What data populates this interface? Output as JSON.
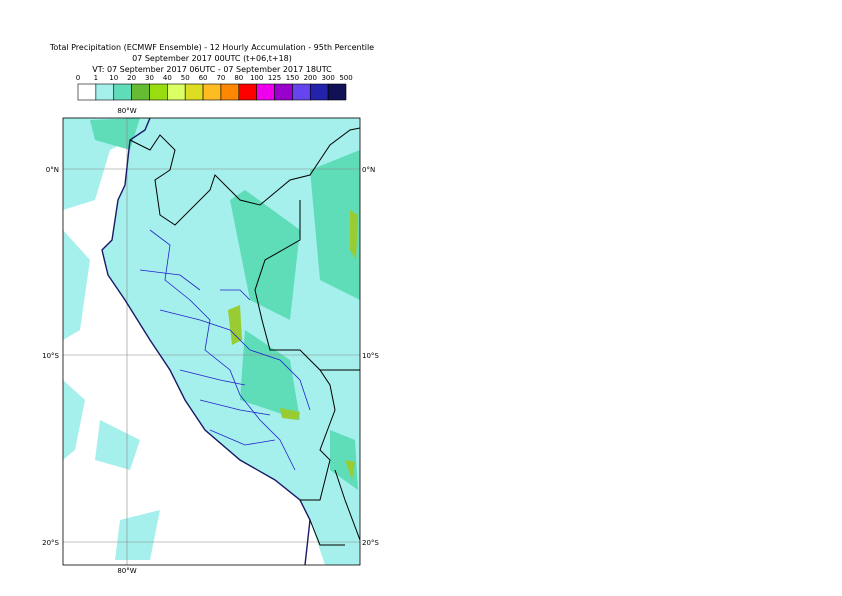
{
  "header": {
    "lines": [
      "Total Precipitation (ECMWF Ensemble) - 12 Hourly Accumulation - 95th Percentile",
      "07 September 2017 00UTC (t+06,t+18)",
      "VT: 07 September 2017 06UTC - 07 September 2017 18UTC"
    ]
  },
  "legend": {
    "thresholds": [
      0,
      1,
      10,
      20,
      30,
      40,
      50,
      60,
      70,
      80,
      100,
      125,
      150,
      200,
      300,
      500
    ],
    "colors": [
      "#ffffff",
      "#a5f0ec",
      "#5fdcb8",
      "#66bb33",
      "#99dd11",
      "#ddff66",
      "#dddd22",
      "#ffbb22",
      "#ff8800",
      "#ff0000",
      "#ee00ee",
      "#9900cc",
      "#6644ee",
      "#2222aa",
      "#111155"
    ]
  },
  "map": {
    "lon_label": "80°W",
    "lat_labels": [
      "0°N",
      "10°S",
      "20°S"
    ]
  }
}
